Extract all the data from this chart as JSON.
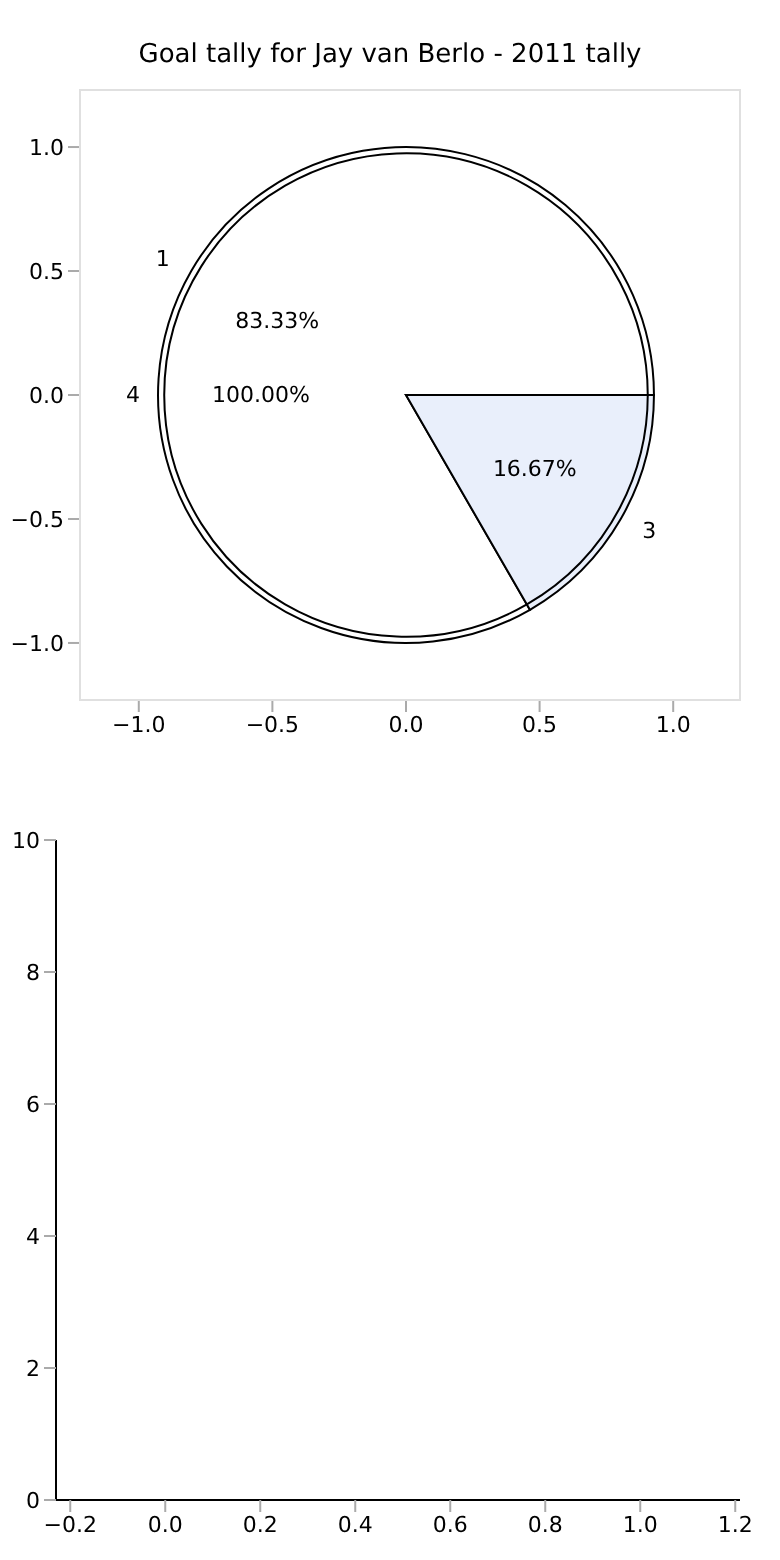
{
  "chart_data": [
    {
      "type": "scatter",
      "title": "Goal tally for Jay van Berlo - 2011 tally",
      "xlim": [
        -1.22,
        1.25
      ],
      "ylim": [
        -1.23,
        1.23
      ],
      "xticks": [
        {
          "value": -1,
          "label": "−1.0"
        },
        {
          "value": -0.5,
          "label": "−0.5"
        },
        {
          "value": 0,
          "label": "0.0"
        },
        {
          "value": 0.5,
          "label": "0.5"
        },
        {
          "value": 1,
          "label": "1.0"
        }
      ],
      "yticks": [
        {
          "value": -1,
          "label": "−1.0"
        },
        {
          "value": -0.5,
          "label": "−0.5"
        },
        {
          "value": 0,
          "label": "0.0"
        },
        {
          "value": 0.5,
          "label": "0.5"
        },
        {
          "value": 1,
          "label": "1.0"
        }
      ]
    },
    {
      "type": "pie",
      "categories": [
        "4"
      ],
      "values": [
        100
      ],
      "colors": [
        "#ffffff"
      ],
      "value_labels": [
        "100.00%"
      ]
    },
    {
      "type": "pie",
      "categories": [
        "1",
        "3"
      ],
      "values": [
        83.33,
        16.67
      ],
      "colors": [
        "#ffffff",
        "#e9effb"
      ],
      "value_labels": [
        "83.33%",
        "16.67%"
      ]
    },
    {
      "type": "scatter",
      "xlim": [
        -0.23,
        1.21
      ],
      "ylim": [
        0,
        10
      ],
      "xticks": [
        {
          "value": -0.2,
          "label": "−0.2"
        },
        {
          "value": 0,
          "label": "0.0"
        },
        {
          "value": 0.2,
          "label": "0.2"
        },
        {
          "value": 0.4,
          "label": "0.4"
        },
        {
          "value": 0.6,
          "label": "0.6"
        },
        {
          "value": 0.8,
          "label": "0.8"
        },
        {
          "value": 1,
          "label": "1.0"
        },
        {
          "value": 1.2,
          "label": "1.2"
        }
      ],
      "yticks": [
        0,
        2,
        4,
        6,
        8,
        10
      ]
    }
  ]
}
